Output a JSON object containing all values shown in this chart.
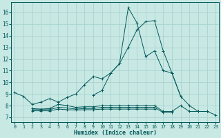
{
  "bg_color": "#c8e8e4",
  "grid_color": "#a8d4d0",
  "line_color": "#005858",
  "xlabel": "Humidex (Indice chaleur)",
  "x_ticks": [
    0,
    1,
    2,
    3,
    4,
    5,
    6,
    7,
    8,
    9,
    10,
    11,
    12,
    13,
    14,
    15,
    16,
    17,
    18,
    19,
    20,
    21,
    22,
    23
  ],
  "y_ticks": [
    7,
    8,
    9,
    10,
    11,
    12,
    13,
    14,
    15,
    16
  ],
  "ylim": [
    6.6,
    16.9
  ],
  "xlim": [
    -0.4,
    23.4
  ],
  "line1_x": [
    0,
    1,
    2,
    3,
    4,
    5,
    6,
    7,
    8,
    9,
    10,
    11,
    12,
    13,
    14,
    15,
    16,
    17,
    18,
    19,
    20,
    21,
    22,
    23
  ],
  "line1_y": [
    9.1,
    8.8,
    8.1,
    8.3,
    8.6,
    8.3,
    8.7,
    9.0,
    9.8,
    10.5,
    10.3,
    10.8,
    11.6,
    16.4,
    15.1,
    12.2,
    12.7,
    11.0,
    10.8,
    8.8,
    8.0,
    7.5,
    7.5,
    7.2
  ],
  "line2_x": [
    9,
    10,
    11,
    12,
    13,
    14,
    15,
    16,
    17,
    18,
    19
  ],
  "line2_y": [
    8.9,
    9.3,
    10.8,
    11.6,
    13.0,
    14.5,
    15.2,
    15.3,
    12.7,
    10.8,
    8.8
  ],
  "flat1_x": [
    2,
    3,
    4,
    5,
    6,
    7,
    8,
    9,
    10,
    11,
    12,
    13,
    14,
    15,
    16,
    17,
    18,
    19,
    20,
    21,
    22
  ],
  "flat1_y": [
    7.75,
    7.7,
    7.75,
    8.1,
    8.0,
    7.85,
    7.9,
    7.9,
    8.0,
    8.0,
    8.0,
    8.0,
    8.0,
    8.0,
    8.0,
    7.5,
    7.5,
    8.0,
    7.5,
    7.5,
    7.5
  ],
  "flat2_x": [
    2,
    3,
    4,
    5,
    6,
    7,
    8,
    9,
    10,
    11,
    12,
    13,
    14,
    15,
    16,
    17,
    18
  ],
  "flat2_y": [
    7.65,
    7.65,
    7.65,
    7.85,
    7.8,
    7.7,
    7.75,
    7.75,
    7.85,
    7.85,
    7.85,
    7.85,
    7.85,
    7.85,
    7.85,
    7.4,
    7.4
  ],
  "flat3_x": [
    2,
    3,
    4,
    5,
    6,
    7,
    8,
    9,
    10,
    11,
    12,
    13,
    14,
    15,
    16
  ],
  "flat3_y": [
    7.55,
    7.55,
    7.55,
    7.7,
    7.65,
    7.62,
    7.65,
    7.65,
    7.7,
    7.7,
    7.7,
    7.7,
    7.7,
    7.7,
    7.7
  ]
}
